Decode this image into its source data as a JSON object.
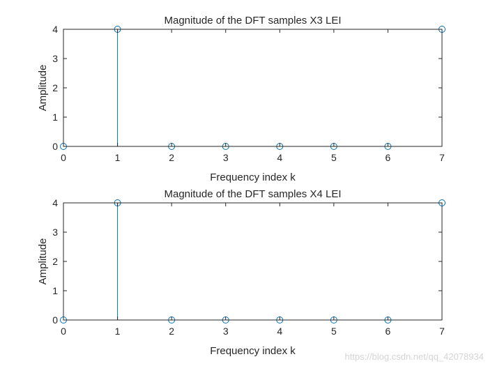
{
  "chart_data": [
    {
      "type": "stem",
      "title": "Magnitude of the DFT samples X3 LEI",
      "xlabel": "Frequency index k",
      "ylabel": "Amplitude",
      "x": [
        0,
        1,
        2,
        3,
        4,
        5,
        6,
        7
      ],
      "values": [
        0,
        4,
        0,
        0,
        0,
        0,
        0,
        4
      ],
      "xlim": [
        0,
        7
      ],
      "ylim": [
        0,
        4
      ],
      "xticks": [
        "0",
        "1",
        "2",
        "3",
        "4",
        "5",
        "6",
        "7"
      ],
      "yticks": [
        "0",
        "1",
        "2",
        "3",
        "4"
      ],
      "grid": false,
      "color": "#0072BD"
    },
    {
      "type": "stem",
      "title": "Magnitude of the DFT samples X4 LEI",
      "xlabel": "Frequency index k",
      "ylabel": "Amplitude",
      "x": [
        0,
        1,
        2,
        3,
        4,
        5,
        6,
        7
      ],
      "values": [
        0,
        4,
        0,
        0,
        0,
        0,
        0,
        4
      ],
      "xlim": [
        0,
        7
      ],
      "ylim": [
        0,
        4
      ],
      "xticks": [
        "0",
        "1",
        "2",
        "3",
        "4",
        "5",
        "6",
        "7"
      ],
      "yticks": [
        "0",
        "1",
        "2",
        "3",
        "4"
      ],
      "grid": false,
      "color": "#0072BD"
    }
  ],
  "watermark": "https://blog.csdn.net/qq_42078934"
}
